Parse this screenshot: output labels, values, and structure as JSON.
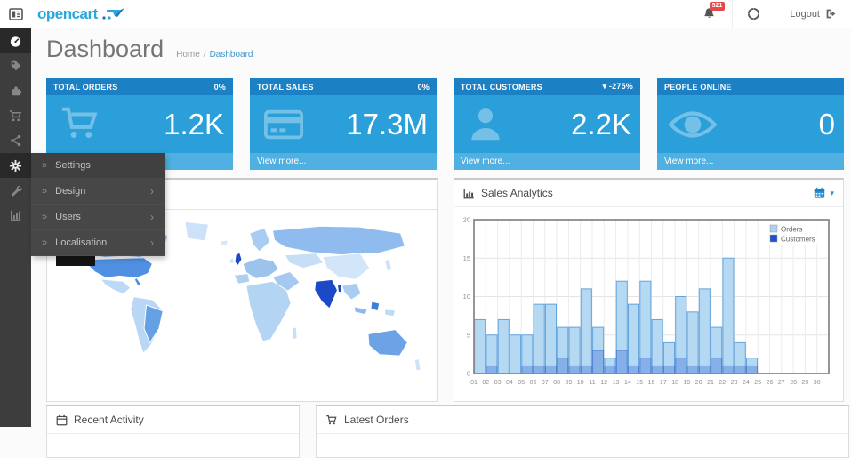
{
  "header": {
    "brand": "opencart",
    "notification_count": "521",
    "logout_label": "Logout"
  },
  "page": {
    "title": "Dashboard",
    "breadcrumb_home": "Home",
    "breadcrumb_sep": "/",
    "breadcrumb_current": "Dashboard"
  },
  "sidebar": {
    "items": [
      {
        "name": "dashboard",
        "icon": "tachometer-icon",
        "active": true
      },
      {
        "name": "catalog",
        "icon": "tag-icon",
        "active": false
      },
      {
        "name": "extensions",
        "icon": "puzzle-icon",
        "active": false
      },
      {
        "name": "sales",
        "icon": "cart-icon",
        "active": false
      },
      {
        "name": "marketing",
        "icon": "share-icon",
        "active": false
      },
      {
        "name": "system",
        "icon": "gear-icon",
        "active": true
      },
      {
        "name": "tools",
        "icon": "wrench-icon",
        "active": false
      },
      {
        "name": "reports",
        "icon": "bar-chart-icon",
        "active": false
      }
    ]
  },
  "flyout": {
    "items": [
      {
        "label": "Settings",
        "has_children": false
      },
      {
        "label": "Design",
        "has_children": true
      },
      {
        "label": "Users",
        "has_children": true
      },
      {
        "label": "Localisation",
        "has_children": true
      }
    ]
  },
  "tiles": [
    {
      "title": "TOTAL ORDERS",
      "percent": "0%",
      "value": "1.2K",
      "icon": "cart-icon",
      "view_more": "View more..."
    },
    {
      "title": "TOTAL SALES",
      "percent": "0%",
      "value": "17.3M",
      "icon": "credit-card-icon",
      "view_more": "View more..."
    },
    {
      "title": "TOTAL CUSTOMERS",
      "percent": "▾ -275%",
      "value": "2.2K",
      "icon": "user-icon",
      "view_more": "View more..."
    },
    {
      "title": "PEOPLE ONLINE",
      "percent": "",
      "value": "0",
      "icon": "eye-icon",
      "view_more": "View more..."
    }
  ],
  "panels": {
    "map": {
      "title": ""
    },
    "sales": {
      "title": "Sales Analytics"
    },
    "activity": {
      "title": "Recent Activity"
    },
    "orders": {
      "title": "Latest Orders"
    }
  },
  "theme": {
    "brand_blue": "#2aa7dd",
    "tile_header_blue": "#1b80c4",
    "tile_body_blue": "#2b9fd9",
    "tile_footer_blue": "#4fb0e1",
    "badge_red": "#e64848",
    "sidebar_dark": "#3d3d3d",
    "flyout_dark": "#474747",
    "map_highlight_navy": "#1b49c8",
    "map_strong_blue": "#4f90e2"
  },
  "chart_data": {
    "type": "bar",
    "title": "Sales Analytics",
    "xlabel": "",
    "ylabel": "",
    "ylim": [
      0,
      20
    ],
    "yticks": [
      0,
      5,
      10,
      15,
      20
    ],
    "grid": true,
    "legend_position": "top-right",
    "x": [
      "01",
      "02",
      "03",
      "04",
      "05",
      "06",
      "07",
      "08",
      "09",
      "10",
      "11",
      "12",
      "13",
      "14",
      "15",
      "16",
      "17",
      "18",
      "19",
      "20",
      "21",
      "22",
      "23",
      "24",
      "25",
      "26",
      "27",
      "28",
      "29",
      "30"
    ],
    "series": [
      {
        "name": "Orders",
        "color": "#a8d4f2",
        "values": [
          7,
          5,
          7,
          5,
          5,
          9,
          9,
          6,
          6,
          11,
          6,
          2,
          12,
          9,
          12,
          7,
          4,
          10,
          8,
          11,
          6,
          15,
          4,
          2,
          0,
          0,
          0,
          0,
          0,
          0
        ]
      },
      {
        "name": "Customers",
        "color": "#1e50cf",
        "values": [
          0,
          1,
          0,
          0,
          1,
          1,
          1,
          2,
          1,
          1,
          3,
          1,
          3,
          1,
          2,
          1,
          1,
          2,
          1,
          1,
          2,
          1,
          1,
          1,
          0,
          0,
          0,
          0,
          0,
          0
        ]
      }
    ]
  }
}
